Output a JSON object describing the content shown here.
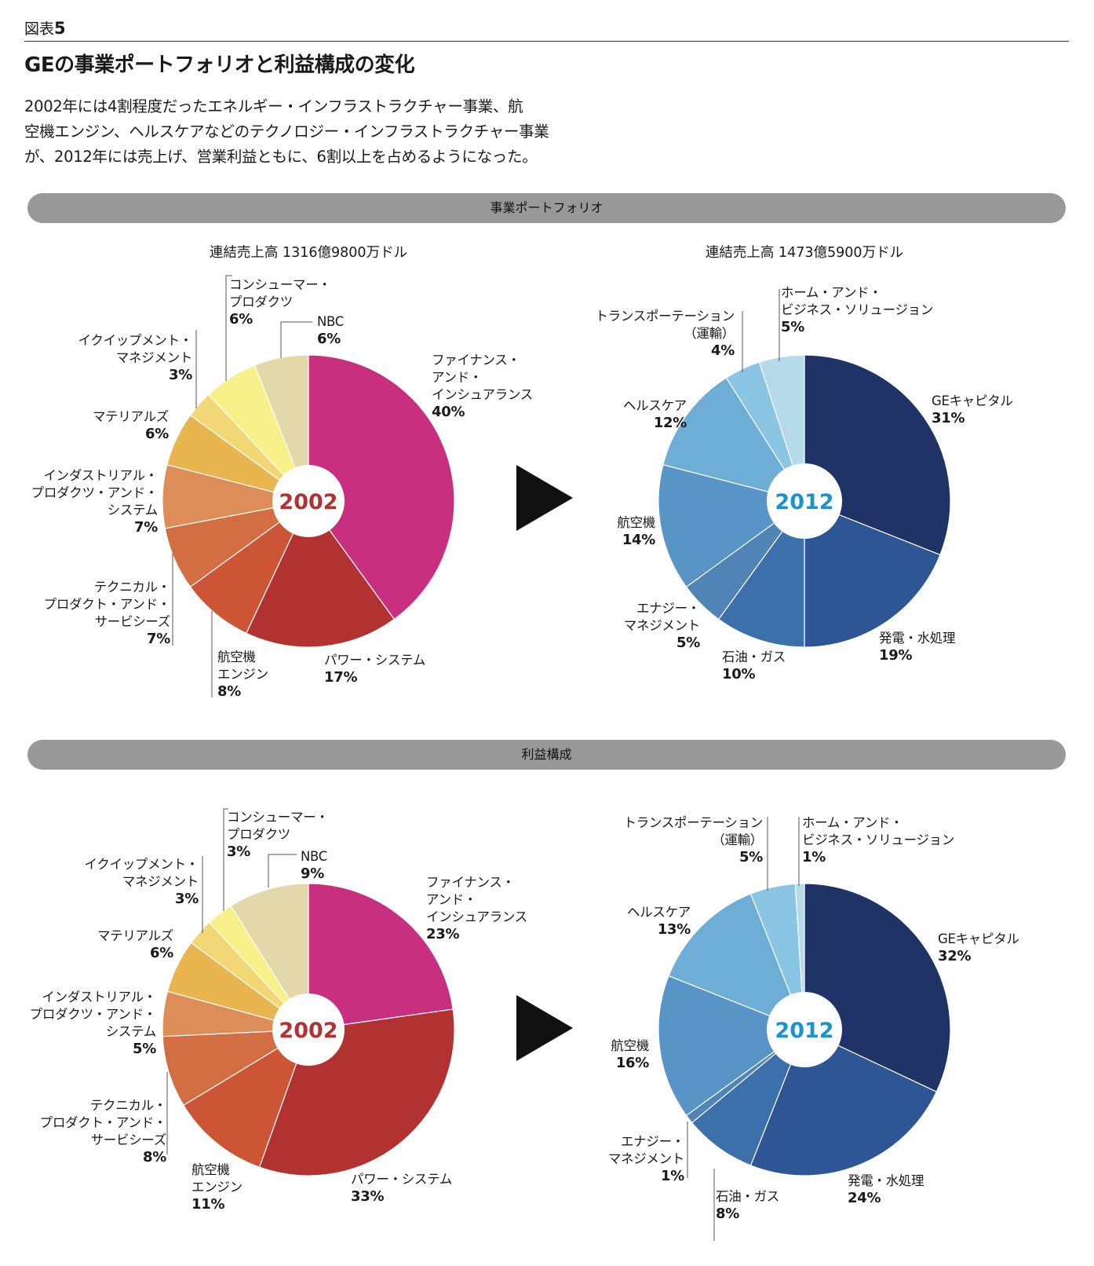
{
  "header": {
    "figure_label": "図表",
    "figure_number": "5",
    "title": "GEの事業ポートフォリオと利益構成の変化",
    "description": [
      "2002年には4割程度だったエネルギー・インフラストラクチャー事業、航",
      "空機エンジン、ヘルスケアなどのテクノロジー・インフラストラクチャー事業",
      "が、2012年には売上げ、営業利益ともに、6割以上を占めるようになった。"
    ]
  },
  "sections": {
    "portfolio": "事業ポートフォリオ",
    "profit": "利益構成"
  },
  "colors": {
    "2002": [
      "#c8307f",
      "#b23232",
      "#cc5535",
      "#d36e42",
      "#dc8d58",
      "#e8b54f",
      "#f2d776",
      "#f8f088",
      "#e2d8aa"
    ],
    "2012": [
      "#1f3366",
      "#2e5594",
      "#3b70aa",
      "#5184b6",
      "#5895c6",
      "#6eaed6",
      "#8ac5e3",
      "#b5dbea"
    ],
    "year_2002_text": "#b23232",
    "year_2012_text": "#1a93cc"
  },
  "chart_data": [
    {
      "type": "pie",
      "id": "sales-2002",
      "title": "連結売上高 1316億9800万ドル",
      "center_label": "2002",
      "slices": [
        {
          "lines": [
            "ファイナンス・",
            "アンド・",
            "インシュアランス"
          ],
          "pct_label": "40%",
          "value": 40
        },
        {
          "lines": [
            "パワー・システム"
          ],
          "pct_label": "17%",
          "value": 17
        },
        {
          "lines": [
            "航空機",
            "エンジン"
          ],
          "pct_label": "8%",
          "value": 8
        },
        {
          "lines": [
            "テクニカル・",
            "プロダクト・アンド・",
            "サービシーズ"
          ],
          "pct_label": "7%",
          "value": 7
        },
        {
          "lines": [
            "インダストリアル・",
            "プロダクツ・アンド・",
            "システム"
          ],
          "pct_label": "7%",
          "value": 7
        },
        {
          "lines": [
            "マテリアルズ"
          ],
          "pct_label": "6%",
          "value": 6
        },
        {
          "lines": [
            "イクイップメント・",
            "マネジメント"
          ],
          "pct_label": "3%",
          "value": 3
        },
        {
          "lines": [
            "コンシューマー・",
            "プロダクツ"
          ],
          "pct_label": "6%",
          "value": 6
        },
        {
          "lines": [
            "NBC"
          ],
          "pct_label": "6%",
          "value": 6
        }
      ]
    },
    {
      "type": "pie",
      "id": "sales-2012",
      "title": "連結売上高 1473億5900万ドル",
      "center_label": "2012",
      "slices": [
        {
          "lines": [
            "GEキャピタル"
          ],
          "pct_label": "31%",
          "value": 31
        },
        {
          "lines": [
            "発電・水処理"
          ],
          "pct_label": "19%",
          "value": 19
        },
        {
          "lines": [
            "石油・ガス"
          ],
          "pct_label": "10%",
          "value": 10
        },
        {
          "lines": [
            "エナジー・",
            "マネジメント"
          ],
          "pct_label": "5%",
          "value": 5
        },
        {
          "lines": [
            "航空機"
          ],
          "pct_label": "14%",
          "value": 14
        },
        {
          "lines": [
            "ヘルスケア"
          ],
          "pct_label": "12%",
          "value": 12
        },
        {
          "lines": [
            "トランスポーテーション",
            "（運輸）"
          ],
          "pct_label": "4%",
          "value": 4
        },
        {
          "lines": [
            "ホーム・アンド・",
            "ビジネス・ソリュージョン"
          ],
          "pct_label": "5%",
          "value": 5
        }
      ]
    },
    {
      "type": "pie",
      "id": "profit-2002",
      "title": "",
      "center_label": "2002",
      "slices": [
        {
          "lines": [
            "ファイナンス・",
            "アンド・",
            "インシュアランス"
          ],
          "pct_label": "23%",
          "value": 23
        },
        {
          "lines": [
            "パワー・システム"
          ],
          "pct_label": "33%",
          "value": 33
        },
        {
          "lines": [
            "航空機",
            "エンジン"
          ],
          "pct_label": "11%",
          "value": 11
        },
        {
          "lines": [
            "テクニカル・",
            "プロダクト・アンド・",
            "サービシーズ"
          ],
          "pct_label": "8%",
          "value": 8
        },
        {
          "lines": [
            "インダストリアル・",
            "プロダクツ・アンド・",
            "システム"
          ],
          "pct_label": "5%",
          "value": 5
        },
        {
          "lines": [
            "マテリアルズ"
          ],
          "pct_label": "6%",
          "value": 6
        },
        {
          "lines": [
            "イクイップメント・",
            "マネジメント"
          ],
          "pct_label": "3%",
          "value": 3
        },
        {
          "lines": [
            "コンシューマー・",
            "プロダクツ"
          ],
          "pct_label": "3%",
          "value": 3
        },
        {
          "lines": [
            "NBC"
          ],
          "pct_label": "9%",
          "value": 9
        }
      ]
    },
    {
      "type": "pie",
      "id": "profit-2012",
      "title": "",
      "center_label": "2012",
      "slices": [
        {
          "lines": [
            "GEキャピタル"
          ],
          "pct_label": "32%",
          "value": 32
        },
        {
          "lines": [
            "発電・水処理"
          ],
          "pct_label": "24%",
          "value": 24
        },
        {
          "lines": [
            "石油・ガス"
          ],
          "pct_label": "8%",
          "value": 8
        },
        {
          "lines": [
            "エナジー・",
            "マネジメント"
          ],
          "pct_label": "1%",
          "value": 1
        },
        {
          "lines": [
            "航空機"
          ],
          "pct_label": "16%",
          "value": 16
        },
        {
          "lines": [
            "ヘルスケア"
          ],
          "pct_label": "13%",
          "value": 13
        },
        {
          "lines": [
            "トランスポーテーション",
            "（運輸）"
          ],
          "pct_label": "5%",
          "value": 5
        },
        {
          "lines": [
            "ホーム・アンド・",
            "ビジネス・ソリュージョン"
          ],
          "pct_label": "1%",
          "value": 1
        }
      ]
    }
  ]
}
